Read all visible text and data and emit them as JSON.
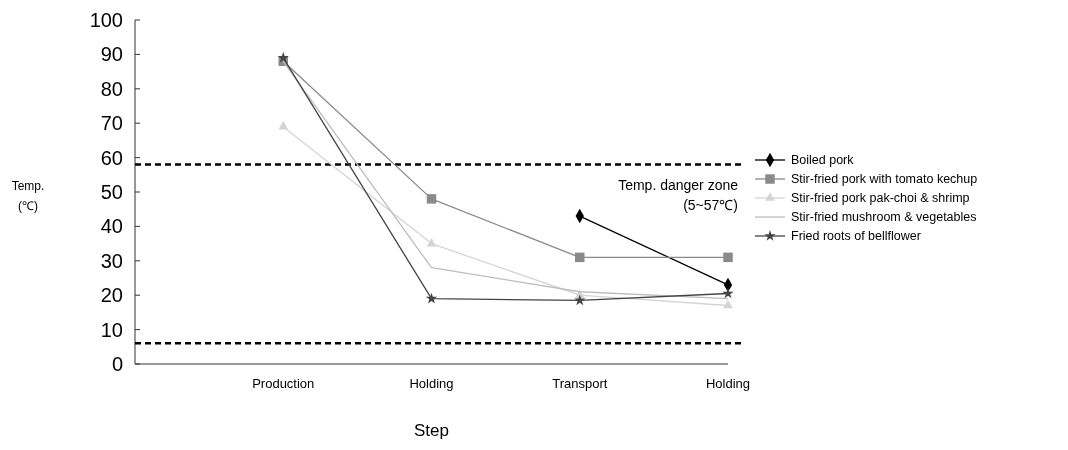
{
  "chart_data": {
    "type": "line",
    "xlabel": "Step",
    "ylabel": "Temp.\n(℃)",
    "categories": [
      "Production",
      "Holding",
      "Transport",
      "Holding"
    ],
    "series": [
      {
        "name": "Boiled pork",
        "color": "#000000",
        "marker": "diamond",
        "values": [
          null,
          null,
          43,
          23
        ]
      },
      {
        "name": "Stir-fried pork with tomato kechup",
        "color": "#8a8a8a",
        "marker": "square",
        "values": [
          88,
          48,
          31,
          31
        ]
      },
      {
        "name": "Stir-fried pork  pak-choi & shrimp",
        "color": "#d4d4d4",
        "marker": "triangle",
        "values": [
          69,
          35,
          20,
          17
        ]
      },
      {
        "name": "Stir-fried mushroom & vegetables",
        "color": "#bdbdbd",
        "marker": "none",
        "values": [
          88,
          28,
          21,
          19
        ]
      },
      {
        "name": "Fried roots of bellflower",
        "color": "#444444",
        "marker": "star",
        "values": [
          89,
          19,
          18.5,
          20.5
        ]
      }
    ],
    "ylim": [
      0,
      100
    ],
    "yticks": [
      0,
      10,
      20,
      30,
      40,
      50,
      60,
      70,
      80,
      90,
      100
    ],
    "ref_lines": [
      {
        "axis": "y",
        "value": 58,
        "color": "#000000",
        "line_style": "dashed"
      },
      {
        "axis": "y",
        "value": 6,
        "color": "#000000",
        "line_style": "dashed"
      }
    ],
    "annotations": [
      "Temp. danger zone\n(5~57℃)"
    ],
    "legend": "right"
  }
}
